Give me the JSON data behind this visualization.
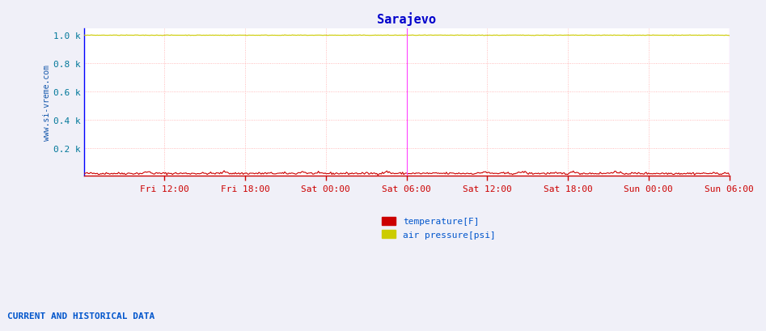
{
  "title": "Sarajevo",
  "title_color": "#0000cc",
  "title_fontsize": 11,
  "background_color": "#f0f0f8",
  "plot_bg_color": "#ffffff",
  "ylabel_text": "www.si-vreme.com",
  "ylabel_color": "#1155aa",
  "ylim": [
    0,
    1.05
  ],
  "ytick_vals": [
    0.2,
    0.4,
    0.6,
    0.8,
    1.0
  ],
  "ytick_labels": [
    "0.2 k",
    "0.4 k",
    "0.6 k",
    "0.8 k",
    "1.0 k"
  ],
  "xtick_labels": [
    "Fri 12:00",
    "Fri 18:00",
    "Sat 00:00",
    "Sat 06:00",
    "Sat 12:00",
    "Sat 18:00",
    "Sun 00:00",
    "Sun 06:00"
  ],
  "xtick_positions": [
    0.125,
    0.25,
    0.375,
    0.5,
    0.625,
    0.75,
    0.875,
    1.0
  ],
  "grid_color": "#ffaaaa",
  "vline_color": "#ff44ff",
  "vline_position": 0.5,
  "right_vline_position": 1.0,
  "left_border_color": "#0000ff",
  "bottom_tick_color": "#cc0000",
  "temperature_color": "#cc0000",
  "pressure_color": "#cccc00",
  "n_points": 576,
  "footer_text": "CURRENT AND HISTORICAL DATA",
  "footer_color": "#0055cc",
  "legend_items": [
    "temperature[F]",
    "air pressure[psi]"
  ],
  "legend_colors": [
    "#cc0000",
    "#cccc00"
  ]
}
